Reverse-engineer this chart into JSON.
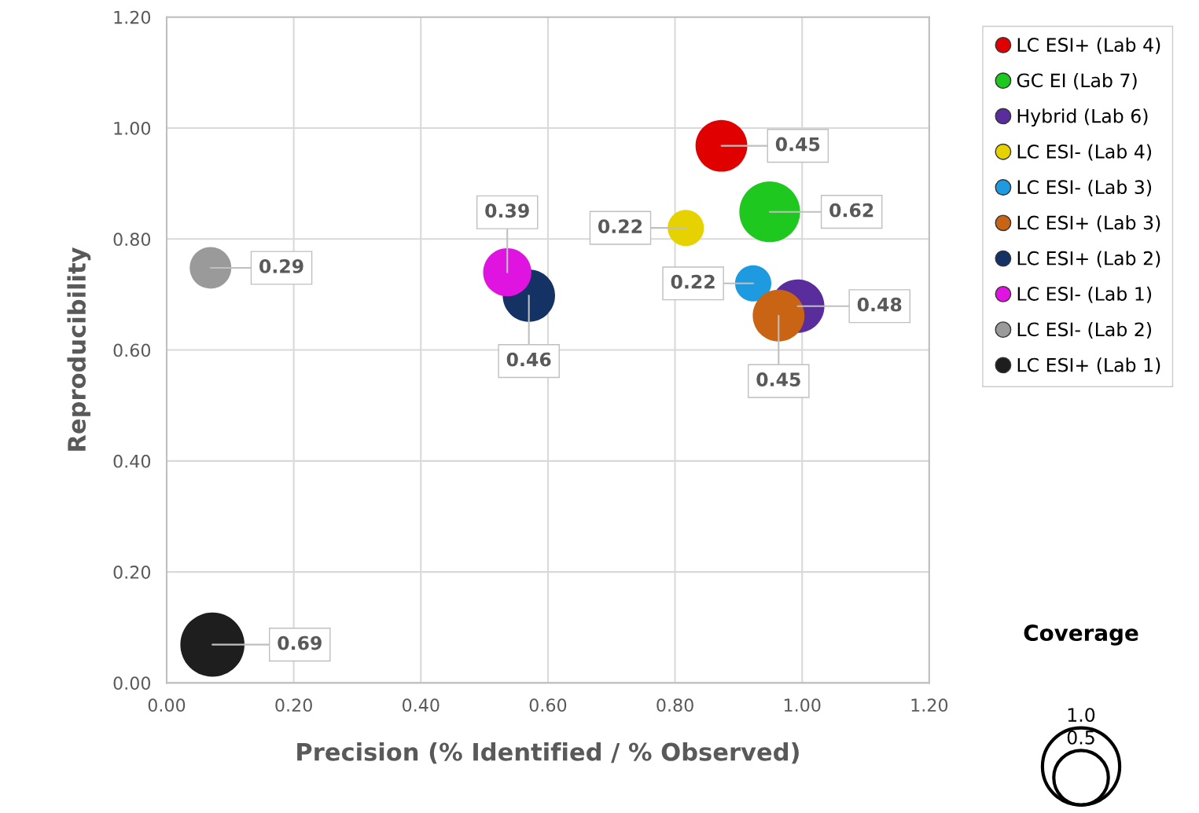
{
  "chart_data": {
    "type": "bubble",
    "xlabel": "Precision (% Identified / % Observed)",
    "ylabel": "Reproducibility",
    "xlim": [
      0,
      1.2
    ],
    "xticks": [
      {
        "value": 0,
        "label": "0.00"
      },
      {
        "value": 0.2,
        "label": "0.20"
      },
      {
        "value": 0.4,
        "label": "0.40"
      },
      {
        "value": 0.6,
        "label": "0.60"
      },
      {
        "value": 0.8,
        "label": "0.80"
      },
      {
        "value": 1.0,
        "label": "1.00"
      },
      {
        "value": 1.2,
        "label": "1.20"
      }
    ],
    "ylim": [
      0,
      1.2
    ],
    "yticks": [
      {
        "value": 0,
        "label": "0.00"
      },
      {
        "value": 0.2,
        "label": "0.20"
      },
      {
        "value": 0.4,
        "label": "0.40"
      },
      {
        "value": 0.6,
        "label": "0.60"
      },
      {
        "value": 0.8,
        "label": "0.80"
      },
      {
        "value": 1.0,
        "label": "1.00"
      },
      {
        "value": 1.2,
        "label": "1.20"
      }
    ],
    "grid": true,
    "legend": "right",
    "marker": "circle",
    "size_legend": [
      {
        "value": 1.0,
        "label": "1.0"
      },
      {
        "value": 0.5,
        "label": "0.5"
      }
    ],
    "annotations": [
      "Coverage"
    ],
    "series": [
      {
        "name": "LC ESI+ (Lab 4)",
        "color": "#e00000",
        "x": [
          0.873
        ],
        "values": [
          0.968
        ],
        "sizes": [
          0.45
        ],
        "value_labels": [
          "0.45"
        ]
      },
      {
        "name": "GC EI (Lab 7)",
        "color": "#1ec81e",
        "x": [
          0.949
        ],
        "values": [
          0.849
        ],
        "sizes": [
          0.62
        ],
        "value_labels": [
          "0.62"
        ]
      },
      {
        "name": "Hybrid (Lab 6)",
        "color": "#5a2d9c",
        "x": [
          0.993
        ],
        "values": [
          0.679
        ],
        "sizes": [
          0.48
        ],
        "value_labels": [
          "0.48"
        ]
      },
      {
        "name": "LC ESI- (Lab 4)",
        "color": "#e6d200",
        "x": [
          0.817
        ],
        "values": [
          0.82
        ],
        "sizes": [
          0.22
        ],
        "value_labels": [
          "0.22"
        ]
      },
      {
        "name": "LC ESI- (Lab 3)",
        "color": "#1e9be0",
        "x": [
          0.923
        ],
        "values": [
          0.72
        ],
        "sizes": [
          0.22
        ],
        "value_labels": [
          "0.22"
        ]
      },
      {
        "name": "LC ESI+ (Lab 3)",
        "color": "#c86414",
        "x": [
          0.963
        ],
        "values": [
          0.662
        ],
        "sizes": [
          0.45
        ],
        "value_labels": [
          "0.45"
        ]
      },
      {
        "name": "LC ESI+ (Lab 2)",
        "color": "#143264",
        "x": [
          0.57
        ],
        "values": [
          0.698
        ],
        "sizes": [
          0.46
        ],
        "value_labels": [
          "0.46"
        ]
      },
      {
        "name": "LC ESI- (Lab 1)",
        "color": "#e014e0",
        "x": [
          0.536
        ],
        "values": [
          0.74
        ],
        "sizes": [
          0.39
        ],
        "value_labels": [
          "0.39"
        ]
      },
      {
        "name": "LC ESI- (Lab 2)",
        "color": "#9a9a9a",
        "x": [
          0.069
        ],
        "values": [
          0.748
        ],
        "sizes": [
          0.29
        ],
        "value_labels": [
          "0.29"
        ]
      },
      {
        "name": "LC ESI+ (Lab 1)",
        "color": "#1e1e1e",
        "x": [
          0.072
        ],
        "values": [
          0.069
        ],
        "sizes": [
          0.69
        ],
        "value_labels": [
          "0.69"
        ]
      }
    ]
  }
}
